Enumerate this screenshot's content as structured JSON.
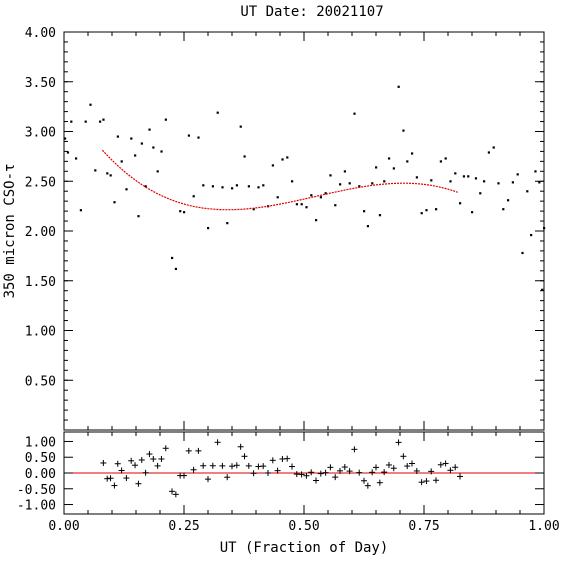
{
  "chart_data": [
    {
      "type": "scatter",
      "title": "UT Date: 20021107",
      "xlabel": "UT (Fraction of Day)",
      "ylabel": "350 micron CSO-τ",
      "xlim": [
        0,
        1
      ],
      "ylim": [
        0,
        4
      ],
      "x_ticks": [
        "0.00",
        "0.25",
        "0.50",
        "0.75",
        "1.00"
      ],
      "y_ticks": [
        "0.50",
        "1.00",
        "1.50",
        "2.00",
        "2.50",
        "3.00",
        "3.50",
        "4.00"
      ],
      "points": [
        [
          0.002,
          2.93
        ],
        [
          0.008,
          2.79
        ],
        [
          0.015,
          3.1
        ],
        [
          0.025,
          2.73
        ],
        [
          0.035,
          2.21
        ],
        [
          0.045,
          3.1
        ],
        [
          0.055,
          3.27
        ],
        [
          0.065,
          2.61
        ],
        [
          0.075,
          3.1
        ],
        [
          0.082,
          3.12
        ],
        [
          0.09,
          2.58
        ],
        [
          0.097,
          2.56
        ],
        [
          0.105,
          2.29
        ],
        [
          0.112,
          2.95
        ],
        [
          0.12,
          2.7
        ],
        [
          0.13,
          2.42
        ],
        [
          0.14,
          2.93
        ],
        [
          0.148,
          2.76
        ],
        [
          0.155,
          2.15
        ],
        [
          0.162,
          2.88
        ],
        [
          0.17,
          2.45
        ],
        [
          0.178,
          3.02
        ],
        [
          0.186,
          2.84
        ],
        [
          0.195,
          2.6
        ],
        [
          0.203,
          2.8
        ],
        [
          0.212,
          3.12
        ],
        [
          0.225,
          1.73
        ],
        [
          0.233,
          1.62
        ],
        [
          0.242,
          2.2
        ],
        [
          0.25,
          2.19
        ],
        [
          0.26,
          2.96
        ],
        [
          0.27,
          2.35
        ],
        [
          0.28,
          2.94
        ],
        [
          0.29,
          2.46
        ],
        [
          0.3,
          2.03
        ],
        [
          0.31,
          2.45
        ],
        [
          0.32,
          3.19
        ],
        [
          0.33,
          2.44
        ],
        [
          0.34,
          2.08
        ],
        [
          0.35,
          2.43
        ],
        [
          0.36,
          2.46
        ],
        [
          0.368,
          3.05
        ],
        [
          0.376,
          2.75
        ],
        [
          0.385,
          2.45
        ],
        [
          0.395,
          2.22
        ],
        [
          0.405,
          2.44
        ],
        [
          0.415,
          2.46
        ],
        [
          0.425,
          2.25
        ],
        [
          0.435,
          2.66
        ],
        [
          0.445,
          2.34
        ],
        [
          0.455,
          2.72
        ],
        [
          0.465,
          2.74
        ],
        [
          0.475,
          2.5
        ],
        [
          0.485,
          2.27
        ],
        [
          0.495,
          2.27
        ],
        [
          0.505,
          2.24
        ],
        [
          0.515,
          2.36
        ],
        [
          0.525,
          2.11
        ],
        [
          0.535,
          2.34
        ],
        [
          0.545,
          2.38
        ],
        [
          0.555,
          2.56
        ],
        [
          0.565,
          2.26
        ],
        [
          0.575,
          2.47
        ],
        [
          0.585,
          2.6
        ],
        [
          0.595,
          2.48
        ],
        [
          0.605,
          3.18
        ],
        [
          0.615,
          2.45
        ],
        [
          0.625,
          2.2
        ],
        [
          0.633,
          2.05
        ],
        [
          0.642,
          2.48
        ],
        [
          0.65,
          2.64
        ],
        [
          0.658,
          2.16
        ],
        [
          0.667,
          2.5
        ],
        [
          0.677,
          2.73
        ],
        [
          0.687,
          2.63
        ],
        [
          0.697,
          3.45
        ],
        [
          0.707,
          3.01
        ],
        [
          0.715,
          2.7
        ],
        [
          0.725,
          2.78
        ],
        [
          0.735,
          2.54
        ],
        [
          0.745,
          2.18
        ],
        [
          0.755,
          2.21
        ],
        [
          0.765,
          2.51
        ],
        [
          0.775,
          2.22
        ],
        [
          0.785,
          2.7
        ],
        [
          0.795,
          2.73
        ],
        [
          0.805,
          2.5
        ],
        [
          0.815,
          2.58
        ],
        [
          0.825,
          2.28
        ],
        [
          0.833,
          2.55
        ],
        [
          0.842,
          2.55
        ],
        [
          0.85,
          2.19
        ],
        [
          0.858,
          2.53
        ],
        [
          0.867,
          2.38
        ],
        [
          0.875,
          2.5
        ],
        [
          0.885,
          2.79
        ],
        [
          0.895,
          2.84
        ],
        [
          0.905,
          2.48
        ],
        [
          0.915,
          2.22
        ],
        [
          0.925,
          2.31
        ],
        [
          0.935,
          2.49
        ],
        [
          0.945,
          2.57
        ],
        [
          0.955,
          1.78
        ],
        [
          0.965,
          2.4
        ],
        [
          0.973,
          1.96
        ],
        [
          0.982,
          2.6
        ],
        [
          0.99,
          2.49
        ],
        [
          0.996,
          1.41
        ],
        [
          1.0,
          2.03
        ]
      ],
      "fit": {
        "x_start": 0.08,
        "x_end": 0.82,
        "coefficients": [
          3.337,
          -7.852,
          17.067,
          -10.855
        ]
      }
    },
    {
      "type": "scatter",
      "xlim": [
        0,
        1
      ],
      "ylim": [
        -1.3,
        1.3
      ],
      "y_ticks": [
        "1.00",
        "0.50",
        "0.00",
        "-0.50",
        "-1.00"
      ],
      "zero_line": 0
    }
  ]
}
